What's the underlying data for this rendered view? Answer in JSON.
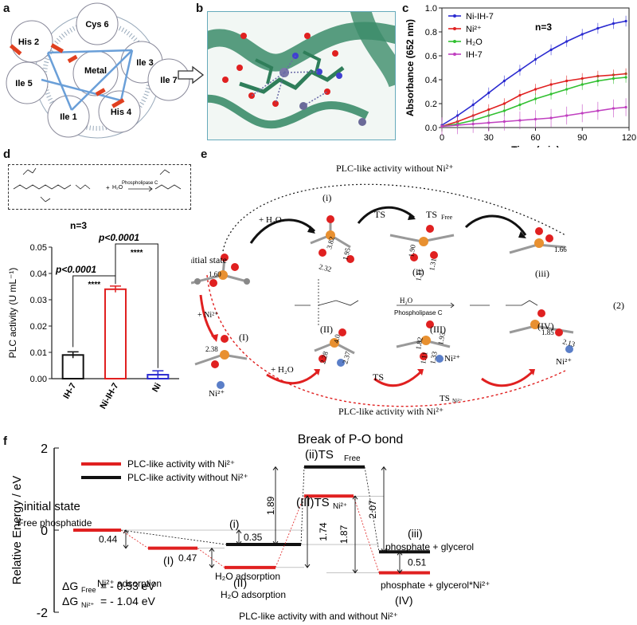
{
  "panels": {
    "a": "a",
    "b": "b",
    "c": "c",
    "d": "d",
    "e": "e",
    "f": "f"
  },
  "panel_a": {
    "circles": [
      {
        "label": "Cys 6"
      },
      {
        "label": "Ile 3"
      },
      {
        "label": "Ile 7"
      },
      {
        "label": "His 4"
      },
      {
        "label": "Ile 1"
      },
      {
        "label": "Ile 5"
      },
      {
        "label": "His 2"
      },
      {
        "label": "Metal"
      }
    ],
    "arrow_color": "#6a9fd8"
  },
  "chart_c": {
    "type": "line",
    "ylabel": "Absorbance (652 nm)",
    "xlabel": "Time (min)",
    "xticks": [
      "0",
      "30",
      "60",
      "90",
      "120"
    ],
    "yticks": [
      "0.0",
      "0.2",
      "0.4",
      "0.6",
      "0.8",
      "1.0"
    ],
    "annotation": "n=3",
    "xlim": [
      0,
      120
    ],
    "ylim": [
      0,
      1.0
    ],
    "series": [
      {
        "name": "Ni-IH-7",
        "color": "#2a2ad0",
        "x": [
          0,
          10,
          20,
          30,
          40,
          50,
          60,
          70,
          80,
          90,
          100,
          110,
          118
        ],
        "y": [
          0.02,
          0.1,
          0.19,
          0.29,
          0.39,
          0.48,
          0.57,
          0.65,
          0.72,
          0.78,
          0.83,
          0.87,
          0.89
        ]
      },
      {
        "name": "Ni²⁺",
        "color": "#e02020",
        "x": [
          0,
          10,
          20,
          30,
          40,
          50,
          60,
          70,
          80,
          90,
          100,
          110,
          118
        ],
        "y": [
          0.01,
          0.05,
          0.1,
          0.15,
          0.2,
          0.27,
          0.32,
          0.36,
          0.39,
          0.41,
          0.43,
          0.44,
          0.45
        ]
      },
      {
        "name": "H₂O",
        "color": "#30c030",
        "x": [
          0,
          10,
          20,
          30,
          40,
          50,
          60,
          70,
          80,
          90,
          100,
          110,
          118
        ],
        "y": [
          0.01,
          0.03,
          0.06,
          0.1,
          0.14,
          0.19,
          0.24,
          0.28,
          0.32,
          0.36,
          0.39,
          0.41,
          0.42
        ]
      },
      {
        "name": "IH-7",
        "color": "#c040c0",
        "x": [
          0,
          10,
          20,
          30,
          40,
          50,
          60,
          70,
          80,
          90,
          100,
          110,
          118
        ],
        "y": [
          0.01,
          0.02,
          0.03,
          0.04,
          0.05,
          0.06,
          0.07,
          0.08,
          0.1,
          0.12,
          0.14,
          0.16,
          0.17
        ]
      }
    ]
  },
  "chart_d": {
    "type": "bar",
    "ylabel": "PLC activity (U mL⁻¹)",
    "categories": [
      "IH-7",
      "Ni-IH-7",
      "Ni"
    ],
    "values": [
      0.009,
      0.034,
      0.0015
    ],
    "errors": [
      0.0012,
      0.0012,
      0.0015
    ],
    "colors": [
      "#111111",
      "#e02020",
      "#2a2ad0"
    ],
    "yticks": [
      "0.00",
      "0.01",
      "0.02",
      "0.03",
      "0.04",
      "0.05"
    ],
    "ylim": [
      0,
      0.05
    ],
    "n_label": "n=3",
    "p1": "p<0.0001",
    "p2": "p<0.0001",
    "stars": "****"
  },
  "reaction_d": {
    "enzyme": "Phospholipase C",
    "water": "H₂O",
    "plus": "+"
  },
  "panel_e": {
    "title_top": "PLC-like activity without Ni²⁺",
    "title_bottom": "PLC-like activity with Ni²⁺",
    "initial_state": "initial state",
    "h2o_top": "+ H₂O",
    "h2o_bottom": "+ H₂O",
    "ni_add": "+ Ni²⁺",
    "ts": "TS",
    "ts_free": "TS",
    "ts_free_sub": "Free",
    "ts_ni": "TS",
    "ts_ni_sub": "Ni²⁺",
    "roman": [
      "(i)",
      "(ii)",
      "(iii)",
      "(I)",
      "(II)",
      "(III)",
      "(IV)",
      "(2)"
    ],
    "dists": [
      "1.60",
      "3.82",
      "1.95",
      "2.32",
      "1.90",
      "1.31",
      "1.11",
      "1.66",
      "2.38",
      "2.28",
      "2.37",
      "4.0",
      "1.82",
      "1.11",
      "1.33",
      "1.93",
      "1.85",
      "2.13"
    ],
    "ni": "Ni²⁺",
    "enzyme": "Phospholipase C",
    "water": "H₂O"
  },
  "chart_f": {
    "type": "energy-diagram",
    "title": "Break of P-O bond",
    "ylabel": "Relative Energy / eV",
    "yticks": [
      "2",
      "0",
      "-2"
    ],
    "xlabel": "PLC-like activity with and without Ni²⁺",
    "legend": [
      {
        "label": "PLC-like activity with Ni²⁺",
        "color": "#e02020"
      },
      {
        "label": "PLC-like activity without Ni²⁺",
        "color": "#111111"
      }
    ],
    "levels": {
      "initial": 0,
      "i": -0.35,
      "I": -0.44,
      "II": -0.91,
      "TSfree": 1.54,
      "TSni": 0.83,
      "iii": -0.53,
      "IV": -1.04
    },
    "labels": {
      "initial_state": "initial state",
      "free_phosphatide": "Free phosphatide",
      "ni_adsorption": "Ni²⁺ adsorption",
      "h2o_adsorption_i": "H₂O adsorption",
      "h2o_adsorption_II": "H₂O adsorption",
      "ts_free": "(ii)TS",
      "ts_free_sub": "Free",
      "ts_ni": "(III)TS",
      "ts_ni_sub": "Ni²⁺",
      "iii": "(iii)",
      "iii_desc": "phosphate + glycerol",
      "IV": "(IV)",
      "IV_desc": "phosphate + glycerol*Ni²⁺",
      "i": "(i)",
      "I": "(I)",
      "II": "(II)"
    },
    "gaps": [
      "0.44",
      "0.35",
      "0.47",
      "1.89",
      "1.74",
      "1.87",
      "2.07",
      "0.51"
    ],
    "dg_free": "ΔG",
    "dg_free_sub": "Free",
    "dg_free_val": "= - 0.53 eV",
    "dg_ni": "ΔG",
    "dg_ni_sub": "Ni²⁺",
    "dg_ni_val": "= - 1.04 eV"
  }
}
